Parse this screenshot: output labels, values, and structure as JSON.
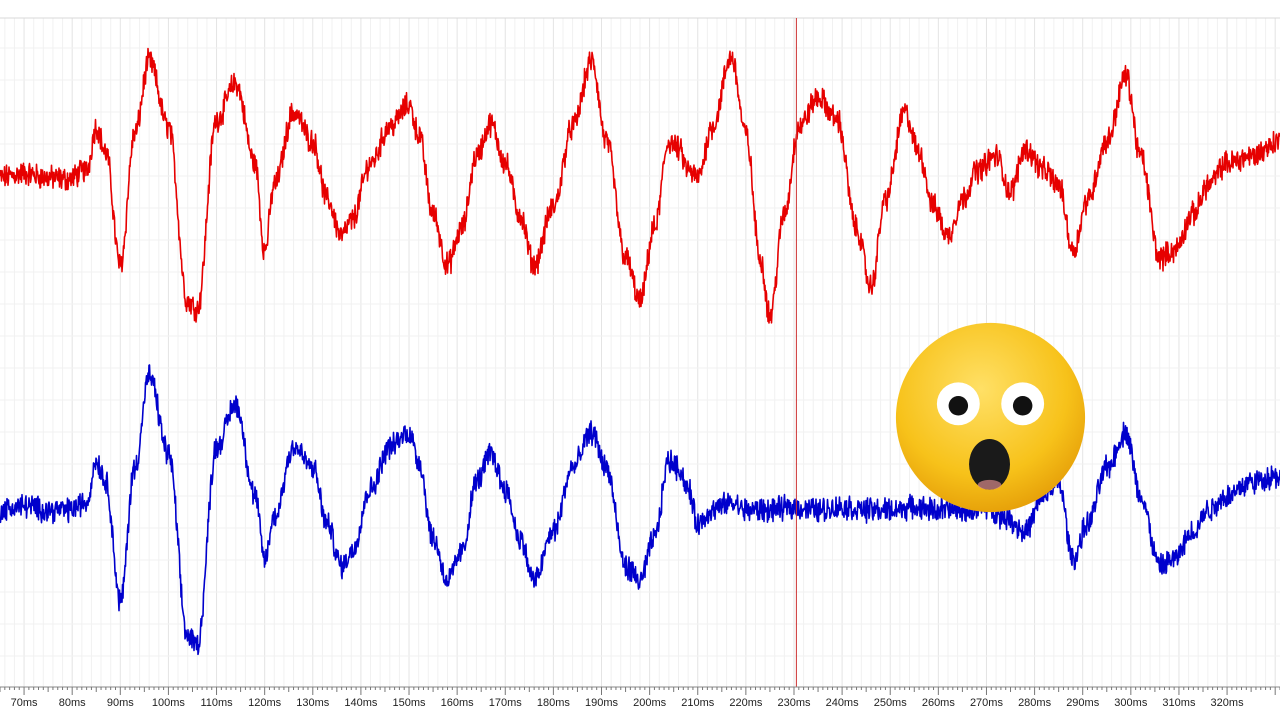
{
  "chart_data": {
    "type": "line",
    "title": "",
    "xlabel": "",
    "ylabel": "",
    "x_unit": "ms",
    "xlim": [
      65,
      331
    ],
    "x_ticks": [
      "70ms",
      "80ms",
      "90ms",
      "100ms",
      "110ms",
      "120ms",
      "130ms",
      "140ms",
      "150ms",
      "160ms",
      "170ms",
      "180ms",
      "190ms",
      "200ms",
      "210ms",
      "220ms",
      "230ms",
      "240ms",
      "250ms",
      "260ms",
      "270ms",
      "280ms",
      "290ms",
      "300ms",
      "310ms",
      "320ms"
    ],
    "grid": true,
    "legend": "none",
    "cursor_ms": 230.5,
    "series": [
      {
        "color": "#e60000",
        "ylim": [
          -1.1,
          1.1
        ],
        "points": [
          [
            65,
            0.05
          ],
          [
            70,
            0.08
          ],
          [
            75,
            0.05
          ],
          [
            79,
            0.04
          ],
          [
            83,
            0.1
          ],
          [
            85,
            0.4
          ],
          [
            87,
            0.22
          ],
          [
            90,
            -0.55
          ],
          [
            93,
            0.35
          ],
          [
            96,
            0.85
          ],
          [
            100,
            0.4
          ],
          [
            104,
            -0.8
          ],
          [
            106,
            -0.85
          ],
          [
            110,
            0.45
          ],
          [
            114,
            0.7
          ],
          [
            118,
            0.15
          ],
          [
            120,
            -0.45
          ],
          [
            122,
            0.0
          ],
          [
            126,
            0.5
          ],
          [
            130,
            0.3
          ],
          [
            133,
            -0.1
          ],
          [
            136,
            -0.35
          ],
          [
            138,
            -0.25
          ],
          [
            142,
            0.15
          ],
          [
            146,
            0.4
          ],
          [
            150,
            0.55
          ],
          [
            152,
            0.35
          ],
          [
            155,
            -0.2
          ],
          [
            158,
            -0.55
          ],
          [
            161,
            -0.3
          ],
          [
            164,
            0.2
          ],
          [
            167,
            0.42
          ],
          [
            170,
            0.15
          ],
          [
            173,
            -0.2
          ],
          [
            176,
            -0.55
          ],
          [
            180,
            -0.15
          ],
          [
            184,
            0.4
          ],
          [
            188,
            0.85
          ],
          [
            191,
            0.3
          ],
          [
            195,
            -0.5
          ],
          [
            198,
            -0.8
          ],
          [
            201,
            -0.3
          ],
          [
            204,
            0.3
          ],
          [
            206,
            0.25
          ],
          [
            208,
            0.1
          ],
          [
            210,
            0.05
          ],
          [
            213,
            0.4
          ],
          [
            217,
            0.88
          ],
          [
            220,
            0.35
          ],
          [
            223,
            -0.5
          ],
          [
            225,
            -0.9
          ],
          [
            228,
            -0.2
          ],
          [
            231,
            0.4
          ],
          [
            235,
            0.6
          ],
          [
            239,
            0.45
          ],
          [
            243,
            -0.3
          ],
          [
            246,
            -0.7
          ],
          [
            249,
            -0.1
          ],
          [
            253,
            0.5
          ],
          [
            256,
            0.22
          ],
          [
            259,
            -0.15
          ],
          [
            262,
            -0.35
          ],
          [
            265,
            -0.1
          ],
          [
            268,
            0.1
          ],
          [
            272,
            0.2
          ],
          [
            275,
            -0.05
          ],
          [
            278,
            0.25
          ],
          [
            282,
            0.1
          ],
          [
            285,
            0.0
          ],
          [
            288,
            -0.45
          ],
          [
            291,
            -0.1
          ],
          [
            295,
            0.3
          ],
          [
            299,
            0.75
          ],
          [
            302,
            0.2
          ],
          [
            306,
            -0.5
          ],
          [
            309,
            -0.45
          ],
          [
            313,
            -0.2
          ],
          [
            316,
            0.0
          ],
          [
            320,
            0.15
          ],
          [
            325,
            0.2
          ],
          [
            331,
            0.3
          ]
        ]
      },
      {
        "color": "#0000cc",
        "ylim": [
          -1.1,
          1.1
        ],
        "points": [
          [
            65,
            0.0
          ],
          [
            70,
            0.03
          ],
          [
            75,
            0.0
          ],
          [
            79,
            0.0
          ],
          [
            83,
            0.05
          ],
          [
            85,
            0.35
          ],
          [
            87,
            0.2
          ],
          [
            90,
            -0.65
          ],
          [
            93,
            0.3
          ],
          [
            96,
            0.95
          ],
          [
            100,
            0.4
          ],
          [
            104,
            -0.9
          ],
          [
            106,
            -0.95
          ],
          [
            110,
            0.45
          ],
          [
            114,
            0.75
          ],
          [
            118,
            0.1
          ],
          [
            120,
            -0.35
          ],
          [
            122,
            -0.05
          ],
          [
            126,
            0.45
          ],
          [
            130,
            0.3
          ],
          [
            133,
            -0.1
          ],
          [
            136,
            -0.4
          ],
          [
            138,
            -0.3
          ],
          [
            142,
            0.15
          ],
          [
            146,
            0.45
          ],
          [
            150,
            0.55
          ],
          [
            152,
            0.35
          ],
          [
            155,
            -0.2
          ],
          [
            158,
            -0.5
          ],
          [
            161,
            -0.3
          ],
          [
            164,
            0.2
          ],
          [
            167,
            0.4
          ],
          [
            170,
            0.15
          ],
          [
            173,
            -0.2
          ],
          [
            176,
            -0.5
          ],
          [
            180,
            -0.15
          ],
          [
            184,
            0.3
          ],
          [
            188,
            0.55
          ],
          [
            191,
            0.3
          ],
          [
            195,
            -0.4
          ],
          [
            198,
            -0.5
          ],
          [
            201,
            -0.2
          ],
          [
            204,
            0.35
          ],
          [
            206,
            0.3
          ],
          [
            208,
            0.15
          ],
          [
            210,
            -0.1
          ],
          [
            213,
            0.0
          ],
          [
            217,
            0.05
          ],
          [
            220,
            0.0
          ],
          [
            225,
            0.0
          ],
          [
            230,
            0.02
          ],
          [
            235,
            0.0
          ],
          [
            240,
            0.02
          ],
          [
            245,
            0.0
          ],
          [
            250,
            0.0
          ],
          [
            255,
            0.02
          ],
          [
            260,
            0.0
          ],
          [
            265,
            0.0
          ],
          [
            270,
            0.02
          ],
          [
            274,
            -0.05
          ],
          [
            278,
            -0.15
          ],
          [
            282,
            0.1
          ],
          [
            285,
            0.2
          ],
          [
            288,
            -0.35
          ],
          [
            291,
            -0.1
          ],
          [
            295,
            0.3
          ],
          [
            299,
            0.55
          ],
          [
            302,
            0.1
          ],
          [
            306,
            -0.4
          ],
          [
            309,
            -0.35
          ],
          [
            313,
            -0.15
          ],
          [
            316,
            0.0
          ],
          [
            320,
            0.1
          ],
          [
            325,
            0.2
          ],
          [
            331,
            0.25
          ]
        ]
      }
    ]
  },
  "overlay": {
    "emoji_icon": "astonished-face-icon"
  }
}
